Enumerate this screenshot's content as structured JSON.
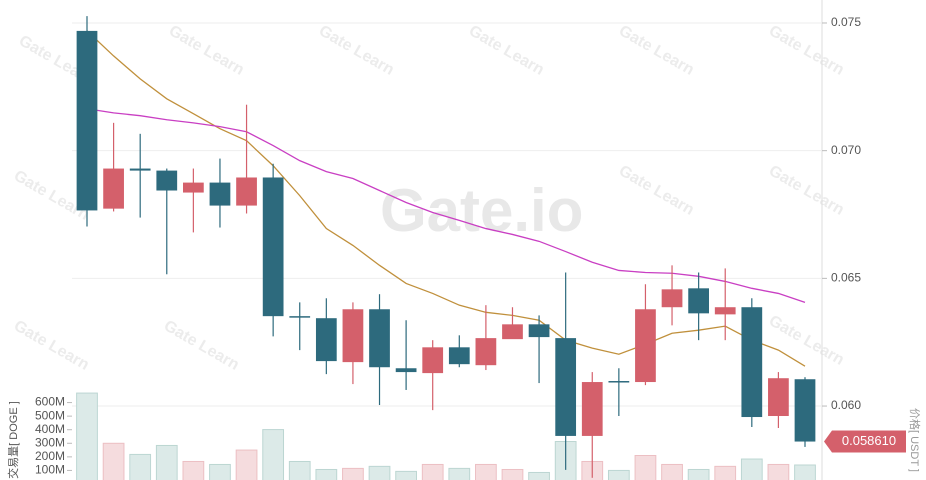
{
  "chart_data": {
    "type": "candlestick",
    "watermark": "Gate Learn",
    "logo": "Gate.io",
    "y_axis_label": "价格[ USDT ]",
    "up_color": "#d4606b",
    "down_color": "#2d6a7d",
    "open": [
      0.07469,
      0.06773,
      0.0693,
      0.06922,
      0.06836,
      0.06875,
      0.06785,
      0.06895,
      0.06352,
      0.06344,
      0.06172,
      0.06379,
      0.06148,
      0.06129,
      0.0623,
      0.0616,
      0.06262,
      0.0632,
      0.06266,
      0.05883,
      0.06098,
      0.06094,
      0.06387,
      0.06461,
      0.06359,
      0.06387,
      0.05961,
      0.06105
    ],
    "high": [
      0.07527,
      0.07109,
      0.07066,
      0.0693,
      0.0693,
      0.06969,
      0.0718,
      0.06949,
      0.06406,
      0.06422,
      0.06406,
      0.06438,
      0.06336,
      0.06258,
      0.06277,
      0.06395,
      0.06387,
      0.06355,
      0.06523,
      0.06133,
      0.06148,
      0.06477,
      0.06551,
      0.06523,
      0.06539,
      0.06422,
      0.06133,
      0.06113
    ],
    "low": [
      0.06703,
      0.06762,
      0.06738,
      0.06516,
      0.0668,
      0.06699,
      0.06754,
      0.06273,
      0.06219,
      0.06125,
      0.06086,
      0.06004,
      0.06063,
      0.05984,
      0.06152,
      0.06141,
      0.06266,
      0.0609,
      0.0575,
      0.05719,
      0.05961,
      0.06082,
      0.06316,
      0.06258,
      0.06258,
      0.05918,
      0.05914,
      0.0584
    ],
    "close": [
      0.06766,
      0.0693,
      0.06922,
      0.06844,
      0.06875,
      0.06785,
      0.06895,
      0.06352,
      0.06348,
      0.06176,
      0.06379,
      0.06152,
      0.06133,
      0.0623,
      0.06164,
      0.06266,
      0.0632,
      0.0627,
      0.05883,
      0.06094,
      0.06094,
      0.06379,
      0.06457,
      0.06363,
      0.06387,
      0.05957,
      0.06109,
      0.05861
    ],
    "series": [
      {
        "color": "#c0903c",
        "values": [
          0.07469,
          0.07371,
          0.07281,
          0.07203,
          0.07145,
          0.07086,
          0.07039,
          0.06941,
          0.06824,
          0.06695,
          0.06629,
          0.06551,
          0.0648,
          0.06441,
          0.06395,
          0.06367,
          0.06355,
          0.06336,
          0.06258,
          0.06227,
          0.06203,
          0.06242,
          0.06285,
          0.06297,
          0.06313,
          0.06258,
          0.06219,
          0.06156
        ]
      },
      {
        "color": "#c93fc3",
        "values": [
          0.07164,
          0.07148,
          0.07137,
          0.07121,
          0.07109,
          0.07094,
          0.07074,
          0.0702,
          0.06961,
          0.06918,
          0.06891,
          0.06844,
          0.06797,
          0.06758,
          0.06727,
          0.06695,
          0.06672,
          0.06645,
          0.06605,
          0.06563,
          0.06531,
          0.06523,
          0.0652,
          0.06508,
          0.06488,
          0.06461,
          0.06441,
          0.06406
        ]
      }
    ],
    "ylim": [
      0.0573,
      0.0759
    ],
    "yticks": [
      {
        "value": 0.06,
        "label": "0.060"
      },
      0.065,
      {
        "value": 0.07,
        "label": "0.070"
      },
      0.075
    ],
    "grid": true,
    "current_price": {
      "value": 0.05861,
      "label": "0.058610",
      "color": "#d4606b"
    },
    "volume": {
      "y_axis_label": "交易量[ DOGE ]",
      "up_color": "#f5dcde",
      "down_color": "#dceae8",
      "values": [
        670000000,
        300000000,
        218000000,
        284000000,
        166000000,
        144000000,
        250000000,
        401000000,
        166000000,
        107000000,
        115000000,
        130000000,
        93000000,
        144000000,
        115000000,
        144000000,
        107000000,
        85000000,
        313000000,
        166000000,
        100000000,
        210000000,
        144000000,
        107000000,
        130000000,
        184000000,
        144000000,
        140000000
      ],
      "ylim": [
        0,
        700000000
      ],
      "yticks": [
        {
          "value": 100000000,
          "label": "100M"
        },
        {
          "value": 200000000,
          "label": "200M"
        },
        {
          "value": 300000000,
          "label": "300M"
        },
        {
          "value": 400000000,
          "label": "400M"
        },
        {
          "value": 500000000,
          "label": "500M"
        },
        {
          "value": 600000000,
          "label": "600M"
        }
      ]
    }
  }
}
